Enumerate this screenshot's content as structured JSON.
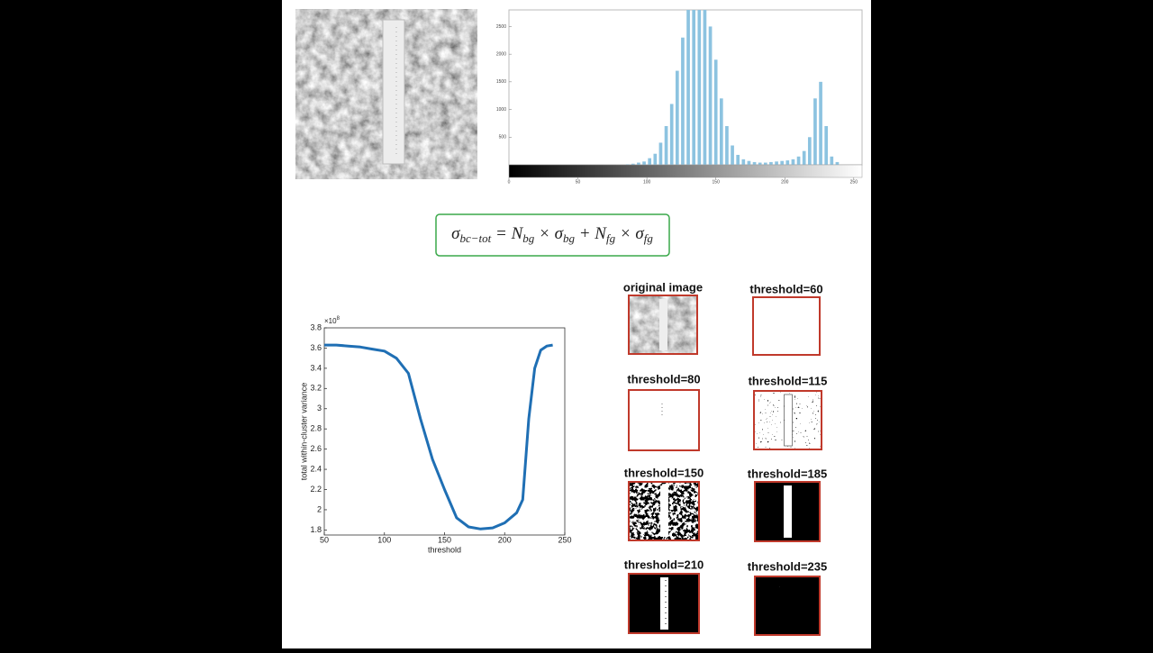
{
  "chart_data": [
    {
      "type": "histogram",
      "bins": [
        0,
        4,
        8,
        12,
        16,
        20,
        24,
        28,
        32,
        36,
        40,
        44,
        48,
        52,
        56,
        60,
        64,
        68,
        72,
        76,
        80,
        84,
        88,
        92,
        96,
        100,
        104,
        108,
        112,
        116,
        120,
        124,
        128,
        132,
        136,
        140,
        144,
        148,
        152,
        156,
        160,
        164,
        168,
        172,
        176,
        180,
        184,
        188,
        192,
        196,
        200,
        204,
        208,
        212,
        216,
        220,
        224,
        228,
        232,
        236,
        240,
        244,
        248,
        252,
        256
      ],
      "values": [
        0,
        0,
        0,
        0,
        0,
        0,
        0,
        0,
        0,
        0,
        0,
        0,
        0,
        0,
        0,
        0,
        0,
        0,
        0,
        0,
        0,
        10,
        20,
        40,
        60,
        120,
        200,
        400,
        700,
        1100,
        1700,
        2300,
        2800,
        2800,
        2800,
        2800,
        2500,
        1900,
        1200,
        700,
        350,
        180,
        100,
        70,
        50,
        40,
        40,
        50,
        60,
        70,
        80,
        100,
        150,
        250,
        500,
        1200,
        1500,
        700,
        150,
        50,
        0,
        0,
        0,
        0
      ],
      "color": "#8cc3e0",
      "xlim": [
        0,
        256
      ],
      "xticks": [
        0,
        50,
        100,
        150,
        200,
        250
      ],
      "ylim": [
        0,
        2800
      ],
      "yticks": [
        500,
        1000,
        1500,
        2000,
        2500
      ]
    },
    {
      "type": "line",
      "x": [
        50,
        60,
        70,
        80,
        90,
        100,
        110,
        120,
        130,
        140,
        150,
        160,
        170,
        180,
        190,
        200,
        210,
        215,
        220,
        225,
        230,
        235,
        240
      ],
      "values": [
        3.63,
        3.63,
        3.62,
        3.61,
        3.59,
        3.57,
        3.5,
        3.35,
        2.9,
        2.5,
        2.2,
        1.92,
        1.83,
        1.81,
        1.82,
        1.87,
        1.97,
        2.1,
        2.9,
        3.4,
        3.58,
        3.62,
        3.63
      ],
      "color": "#1f6fb4",
      "xlabel": "threshold",
      "ylabel": "total within-cluster variance",
      "y_multiplier": {
        "base": "×10",
        "exponent": "8"
      },
      "xlim": [
        50,
        250
      ],
      "xticks": [
        50,
        100,
        150,
        200,
        250
      ],
      "ylim": [
        1.75,
        3.8
      ],
      "yticks": [
        1.8,
        2,
        2.2,
        2.4,
        2.6,
        2.8,
        3,
        3.2,
        3.4,
        3.6,
        3.8
      ]
    }
  ],
  "formula": [
    {
      "main": "σ",
      "sub": "bc−tot"
    },
    {
      "main": " = N",
      "sub": "bg"
    },
    {
      "main": " × σ",
      "sub": "bg"
    },
    {
      "main": " + N",
      "sub": "fg"
    },
    {
      "main": " × σ",
      "sub": "fg"
    }
  ],
  "thumbnails": [
    {
      "title": "original image"
    },
    {
      "title": "threshold=60"
    },
    {
      "title": "threshold=80"
    },
    {
      "title": "threshold=115"
    },
    {
      "title": "threshold=150"
    },
    {
      "title": "threshold=185"
    },
    {
      "title": "threshold=210"
    },
    {
      "title": "threshold=235"
    }
  ]
}
